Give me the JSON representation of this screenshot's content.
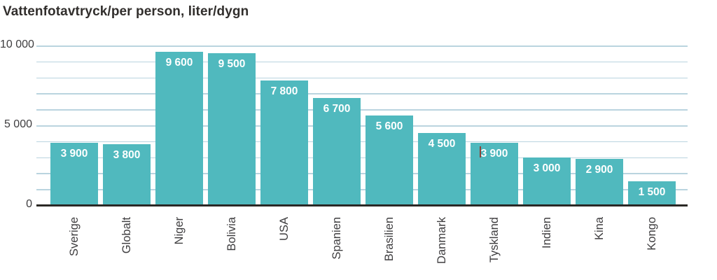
{
  "title": "Vattenfotavtryck/per person, liter/dygn",
  "chart_data": {
    "type": "bar",
    "title": "Vattenfotavtryck/per person, liter/dygn",
    "categories": [
      "Sverige",
      "Globalt",
      "Niger",
      "Bolivia",
      "USA",
      "Spanien",
      "Brasilien",
      "Danmark",
      "Tyskland",
      "Indien",
      "Kina",
      "Kongo"
    ],
    "values": [
      3900,
      3800,
      9600,
      9500,
      7800,
      6700,
      5600,
      4500,
      3900,
      3000,
      2900,
      1500
    ],
    "value_labels": [
      "3 900",
      "3 800",
      "9 600",
      "9 500",
      "7 800",
      "6 700",
      "5 600",
      "4 500",
      "3 900",
      "3 000",
      "2 900",
      "1 500"
    ],
    "xlabel": "",
    "ylabel": "",
    "ylim": [
      0,
      10000
    ],
    "gridline_interval": 1000,
    "grid": true,
    "legend": false,
    "y_ticks": [
      {
        "value": 0,
        "label": "0"
      },
      {
        "value": 5000,
        "label": "5 000"
      },
      {
        "value": 10000,
        "label": "10 000"
      }
    ],
    "bars": [
      {
        "label": "Sverige",
        "value": 3900,
        "value_label": "3 900"
      },
      {
        "label": "Globalt",
        "value": 3800,
        "value_label": "3 800"
      },
      {
        "label": "Niger",
        "value": 9600,
        "value_label": "9 600"
      },
      {
        "label": "Bolivia",
        "value": 9500,
        "value_label": "9 500"
      },
      {
        "label": "USA",
        "value": 7800,
        "value_label": "7 800"
      },
      {
        "label": "Spanien",
        "value": 6700,
        "value_label": "6 700"
      },
      {
        "label": "Brasilien",
        "value": 5600,
        "value_label": "5 600"
      },
      {
        "label": "Danmark",
        "value": 4500,
        "value_label": "4 500"
      },
      {
        "label": "Tyskland",
        "value": 3900,
        "value_label": "3 900",
        "has_text_cursor": true
      },
      {
        "label": "Indien",
        "value": 3000,
        "value_label": "3 000"
      },
      {
        "label": "Kina",
        "value": 2900,
        "value_label": "2 900"
      },
      {
        "label": "Kongo",
        "value": 1500,
        "value_label": "1 500"
      }
    ],
    "colors": {
      "bar": "#50B9BE",
      "gridline": "#BAD4DF",
      "axis_line": "#2B2825",
      "value_label_text": "#FFFFFF",
      "axis_text": "#3E3D3F",
      "title_text": "#312E2C",
      "text_cursor_artifact": "#8B4238"
    }
  }
}
